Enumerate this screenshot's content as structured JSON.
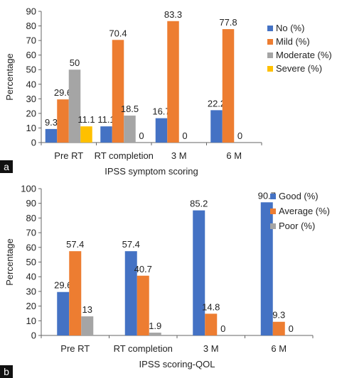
{
  "chart_data": [
    {
      "panel": "a",
      "type": "bar",
      "xlabel": "IPSS symptom scoring",
      "ylabel": "Percentage",
      "ylim": [
        0,
        90
      ],
      "yticks": [
        0,
        10,
        20,
        30,
        40,
        50,
        60,
        70,
        80,
        90
      ],
      "grid": false,
      "legend_position": "right",
      "categories": [
        "Pre RT",
        "RT completion",
        "3 M",
        "6 M"
      ],
      "series": [
        {
          "name": "No (%)",
          "color": "#4472C4",
          "values": [
            9.3,
            11.1,
            16.7,
            22.2
          ],
          "labels": [
            "9.3",
            "11.1",
            "16.7",
            "22.2"
          ]
        },
        {
          "name": "Mild (%)",
          "color": "#ED7D31",
          "values": [
            29.6,
            70.4,
            83.3,
            77.8
          ],
          "labels": [
            "29.6",
            "70.4",
            "83.3",
            "77.8"
          ]
        },
        {
          "name": "Moderate (%)",
          "color": "#A5A5A5",
          "values": [
            50,
            18.5,
            0,
            0
          ],
          "labels": [
            "50",
            "18.5",
            "0",
            "0"
          ]
        },
        {
          "name": "Severe (%)",
          "color": "#FFC000",
          "values": [
            11.1,
            0,
            0,
            0
          ],
          "labels": [
            "11.1",
            "0",
            "",
            ""
          ]
        }
      ]
    },
    {
      "panel": "b",
      "type": "bar",
      "xlabel": "IPSS scoring-QOL",
      "ylabel": "Percentage",
      "ylim": [
        0,
        100
      ],
      "yticks": [
        0,
        10,
        20,
        30,
        40,
        50,
        60,
        70,
        80,
        90,
        100
      ],
      "grid": false,
      "legend_position": "right",
      "categories": [
        "Pre RT",
        "RT completion",
        "3 M",
        "6 M"
      ],
      "series": [
        {
          "name": "Good (%)",
          "color": "#4472C4",
          "values": [
            29.6,
            57.4,
            85.2,
            90.7
          ],
          "labels": [
            "29.6",
            "57.4",
            "85.2",
            "90.7"
          ]
        },
        {
          "name": "Average (%)",
          "color": "#ED7D31",
          "values": [
            57.4,
            40.7,
            14.8,
            9.3
          ],
          "labels": [
            "57.4",
            "40.7",
            "14.8",
            "9.3"
          ]
        },
        {
          "name": "Poor (%)",
          "color": "#A5A5A5",
          "values": [
            13,
            1.9,
            0,
            0
          ],
          "labels": [
            "13",
            "1.9",
            "0",
            "0"
          ]
        }
      ]
    }
  ]
}
